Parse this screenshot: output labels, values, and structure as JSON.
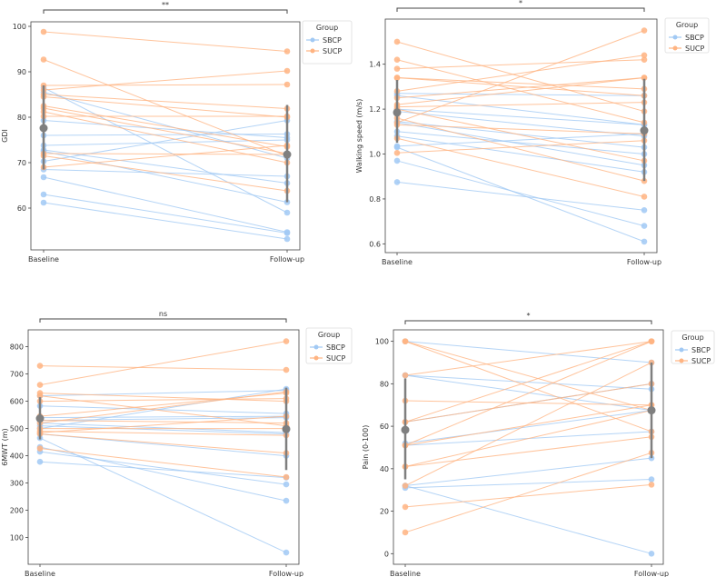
{
  "colors": {
    "SBCP": "#a1c9f4",
    "SUCP": "#ffb482",
    "mean": "#7f7f7f",
    "axis": "#444444"
  },
  "chart_data": [
    {
      "type": "line",
      "ylabel": "GDI",
      "categories": [
        "Baseline",
        "Follow-up"
      ],
      "ylim": [
        50.8,
        101
      ],
      "yticks": [
        60,
        70,
        80,
        90,
        100
      ],
      "ytick_labels": [
        "60",
        "70",
        "80",
        "90",
        "100"
      ],
      "significance": "**",
      "legend": {
        "title": "Group",
        "entries": [
          "SBCP",
          "SUCP"
        ],
        "placement": "outside-top-right"
      },
      "series": [
        {
          "name": "SBCP",
          "pairs": [
            [
              86.5,
              59
            ],
            [
              85.5,
              71
            ],
            [
              79.3,
              75.5
            ],
            [
              76,
              76.3
            ],
            [
              73.8,
              75
            ],
            [
              72.8,
              65.5
            ],
            [
              72.5,
              61.3
            ],
            [
              70.3,
              79.3
            ],
            [
              68.5,
              67
            ],
            [
              66.8,
              54.7
            ],
            [
              63,
              54.5
            ],
            [
              61.2,
              53.2
            ]
          ]
        },
        {
          "name": "SUCP",
          "pairs": [
            [
              98.8,
              94.5
            ],
            [
              92.7,
              71.5
            ],
            [
              87,
              87.2
            ],
            [
              86,
              90.2
            ],
            [
              85,
              81.9
            ],
            [
              84.5,
              80
            ],
            [
              82.5,
              73.5
            ],
            [
              82,
              72
            ],
            [
              81.2,
              70
            ],
            [
              80.2,
              80.2
            ],
            [
              72,
              71.8
            ],
            [
              71.5,
              63.8
            ],
            [
              69,
              73.8
            ]
          ]
        }
      ],
      "mean": {
        "values": [
          77.6,
          71.8
        ],
        "lower": [
          68.5,
          61.3
        ],
        "upper": [
          87,
          82.7
        ]
      }
    },
    {
      "type": "line",
      "ylabel": "Walking speed (m/s)",
      "categories": [
        "Baseline",
        "Follow-up"
      ],
      "ylim": [
        0.561,
        1.601
      ],
      "yticks": [
        0.6,
        0.8,
        1.0,
        1.2,
        1.4
      ],
      "ytick_labels": [
        "0.6",
        "0.8",
        "1.0",
        "1.2",
        "1.4"
      ],
      "significance": "*",
      "legend": {
        "title": "Group",
        "entries": [
          "SBCP",
          "SUCP"
        ],
        "placement": "outside-top-right"
      },
      "series": [
        {
          "name": "SBCP",
          "pairs": [
            [
              1.27,
              1.26
            ],
            [
              1.26,
              1.13
            ],
            [
              1.2,
              1.13
            ],
            [
              1.19,
              1.08
            ],
            [
              1.145,
              1.03
            ],
            [
              1.14,
              0.95
            ],
            [
              1.1,
              1.0
            ],
            [
              1.08,
              0.92
            ],
            [
              1.035,
              1.09
            ],
            [
              1.03,
              0.61
            ],
            [
              0.97,
              0.68
            ],
            [
              0.875,
              0.75
            ]
          ]
        },
        {
          "name": "SUCP",
          "pairs": [
            [
              1.5,
              1.19
            ],
            [
              1.42,
              1.14
            ],
            [
              1.38,
              1.42
            ],
            [
              1.34,
              1.29
            ],
            [
              1.34,
              1.26
            ],
            [
              1.28,
              1.44
            ],
            [
              1.25,
              1.34
            ],
            [
              1.22,
              1.34
            ],
            [
              1.21,
              1.23
            ],
            [
              1.2,
              0.97
            ],
            [
              1.16,
              0.88
            ],
            [
              1.14,
              1.55
            ],
            [
              1.13,
              1.09
            ],
            [
              1.07,
              0.81
            ],
            [
              1.005,
              1.06
            ]
          ]
        }
      ],
      "mean": {
        "values": [
          1.185,
          1.105
        ],
        "lower": [
          1.05,
          0.88
        ],
        "upper": [
          1.33,
          1.335
        ]
      }
    },
    {
      "type": "line",
      "ylabel": "6MWT (m)",
      "categories": [
        "Baseline",
        "Follow-up"
      ],
      "ylim": [
        2,
        862
      ],
      "yticks": [
        100,
        200,
        300,
        400,
        500,
        600,
        700,
        800
      ],
      "ytick_labels": [
        "100",
        "200",
        "300",
        "400",
        "500",
        "600",
        "700",
        "800"
      ],
      "significance": "ns",
      "legend": {
        "title": "Group",
        "entries": [
          "SBCP",
          "SUCP"
        ],
        "placement": "outside-top-right"
      },
      "series": [
        {
          "name": "SBCP",
          "pairs": [
            [
              620,
              640
            ],
            [
              583,
              555
            ],
            [
              540,
              545
            ],
            [
              530,
              540
            ],
            [
              520,
              485
            ],
            [
              510,
              480
            ],
            [
              500,
              645
            ],
            [
              480,
              400
            ],
            [
              465,
              45
            ],
            [
              432,
              235
            ],
            [
              415,
              295
            ],
            [
              378,
              320
            ]
          ]
        },
        {
          "name": "SUCP",
          "pairs": [
            [
              730,
              715
            ],
            [
              660,
              820
            ],
            [
              630,
              600
            ],
            [
              620,
              510
            ],
            [
              600,
              610
            ],
            [
              545,
              630
            ],
            [
              530,
              520
            ],
            [
              520,
              635
            ],
            [
              500,
              500
            ],
            [
              490,
              475
            ],
            [
              485,
              545
            ],
            [
              480,
              410
            ],
            [
              427,
              322
            ]
          ]
        }
      ],
      "mean": {
        "values": [
          537,
          498
        ],
        "lower": [
          460,
          348
        ],
        "upper": [
          615,
          650
        ]
      }
    },
    {
      "type": "line",
      "ylabel": "Pain (0-100)",
      "categories": [
        "Baseline",
        "Follow-up"
      ],
      "ylim": [
        -5,
        105.4
      ],
      "yticks": [
        0,
        20,
        40,
        60,
        80,
        100
      ],
      "ytick_labels": [
        "0",
        "20",
        "40",
        "60",
        "80",
        "100"
      ],
      "significance": "*",
      "legend": {
        "title": "Group",
        "entries": [
          "SBCP",
          "SUCP"
        ],
        "placement": "outside-top-right"
      },
      "series": [
        {
          "name": "SBCP",
          "pairs": [
            [
              100,
              90
            ],
            [
              84,
              77.5
            ],
            [
              84,
              67.5
            ],
            [
              62,
              80
            ],
            [
              52,
              67.5
            ],
            [
              51,
              57.5
            ],
            [
              32,
              45
            ],
            [
              32,
              0
            ],
            [
              31,
              35
            ]
          ]
        },
        {
          "name": "SUCP",
          "pairs": [
            [
              100,
              67.5
            ],
            [
              100,
              57.5
            ],
            [
              84,
              100
            ],
            [
              72,
              70
            ],
            [
              62,
              100
            ],
            [
              62,
              80
            ],
            [
              51,
              100
            ],
            [
              51,
              70
            ],
            [
              41,
              67.5
            ],
            [
              41,
              55
            ],
            [
              32,
              90
            ],
            [
              22,
              32.5
            ],
            [
              10,
              47.5
            ]
          ]
        }
      ],
      "mean": {
        "values": [
          58.3,
          67.5
        ],
        "lower": [
          35,
          45
        ],
        "upper": [
          82.5,
          90
        ]
      }
    }
  ]
}
